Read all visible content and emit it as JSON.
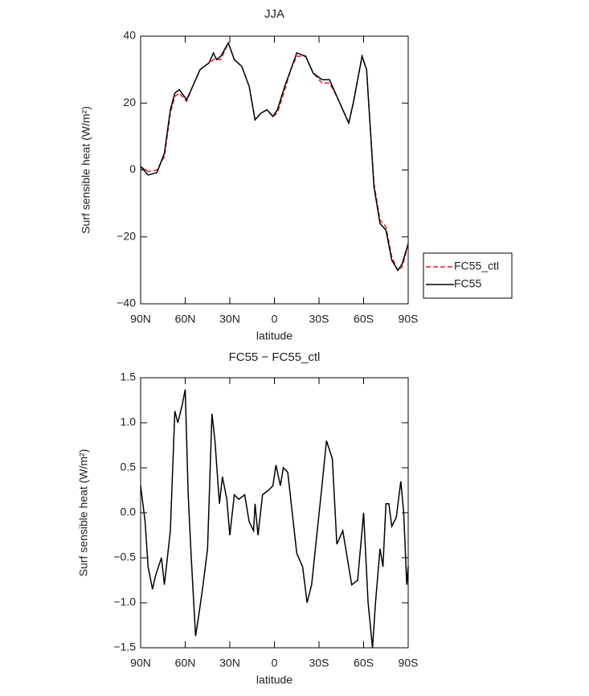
{
  "chart_data": [
    {
      "type": "line",
      "title": "JJA",
      "x_label": "latitude",
      "y_label": "Surf sensible heat (W/m²)",
      "xlim": [
        90,
        -90
      ],
      "xticks": [
        {
          "value": 90,
          "label": "90N"
        },
        {
          "value": 60,
          "label": "60N"
        },
        {
          "value": 30,
          "label": "30N"
        },
        0,
        {
          "value": -30,
          "label": "30S"
        },
        {
          "value": -60,
          "label": "60S"
        },
        {
          "value": -90,
          "label": "90S"
        }
      ],
      "ylim": [
        -40,
        40
      ],
      "yticks": [
        {
          "value": -40,
          "label": "−40"
        },
        {
          "value": -20,
          "label": "−20"
        },
        0,
        20,
        40
      ],
      "legend": "right",
      "x": [
        90,
        85,
        79,
        74,
        70,
        67,
        64,
        59,
        55,
        50,
        44,
        41,
        39,
        36,
        31,
        27,
        22,
        17,
        13,
        9,
        5,
        1,
        -2,
        -7,
        -11,
        -15,
        -21,
        -26,
        -32,
        -37,
        -42,
        -50,
        -53,
        -59,
        -62,
        -67,
        -71,
        -75,
        -79,
        -83,
        -86,
        -90
      ],
      "series": [
        {
          "name": "FC55_ctl",
          "color": "#e02020",
          "style": "dashed",
          "values": [
            1,
            -0.5,
            0,
            4,
            17,
            22,
            23,
            20.5,
            25,
            30,
            32,
            33,
            33,
            33,
            38,
            33,
            31,
            25,
            15,
            17,
            18,
            16,
            17,
            24,
            30,
            34,
            34,
            29,
            26,
            26,
            22,
            14,
            20,
            34,
            30,
            -4,
            -15,
            -17,
            -26,
            -30,
            -29,
            -22
          ]
        },
        {
          "name": "FC55",
          "color": "#000000",
          "style": "solid",
          "values": [
            1,
            -1.5,
            -0.8,
            5,
            18,
            23,
            24,
            21,
            25,
            30,
            32,
            35,
            33,
            34,
            38,
            33,
            31,
            25,
            15,
            17,
            18,
            16,
            18,
            25,
            30,
            35,
            34,
            29,
            27,
            27,
            22,
            14,
            20,
            34,
            30,
            -5,
            -16,
            -18,
            -27,
            -30,
            -28,
            -22
          ]
        }
      ]
    },
    {
      "type": "line",
      "title": "FC55 − FC55_ctl",
      "x_label": "latitude",
      "y_label": "Surf sensible heat (W/m²)",
      "xlim": [
        90,
        -90
      ],
      "xticks": [
        {
          "value": 90,
          "label": "90N"
        },
        {
          "value": 60,
          "label": "60N"
        },
        {
          "value": 30,
          "label": "30N"
        },
        0,
        {
          "value": -30,
          "label": "30S"
        },
        {
          "value": -60,
          "label": "60S"
        },
        {
          "value": -90,
          "label": "90S"
        }
      ],
      "ylim": [
        -1.5,
        1.5
      ],
      "yticks": [
        {
          "value": -1.5,
          "label": "−1.5"
        },
        {
          "value": -1,
          "label": "−1.0"
        },
        {
          "value": -0.5,
          "label": "−0.5"
        },
        {
          "value": 0,
          "label": "0.0"
        },
        0.5,
        {
          "value": 1,
          "label": "1.0"
        },
        1.5
      ],
      "x": [
        90,
        87,
        85,
        82,
        80,
        78,
        76,
        74,
        70,
        67,
        65,
        62,
        60,
        58,
        56,
        53,
        51,
        48,
        45,
        42,
        40,
        37,
        35,
        32,
        30,
        27,
        24,
        20,
        17,
        14,
        13,
        11,
        8,
        4,
        1,
        -1,
        -4,
        -6,
        -9,
        -12,
        -15,
        -19,
        -22,
        -25,
        -32,
        -35,
        -39,
        -42,
        -46,
        -52,
        -56,
        -60,
        -63,
        -66,
        -68,
        -71,
        -73,
        -75,
        -77,
        -79,
        -82,
        -85,
        -87,
        -89,
        -90
      ],
      "series": [
        {
          "name": "FC55",
          "color": "#000000",
          "style": "solid",
          "values": [
            0.3,
            -0.1,
            -0.6,
            -0.85,
            -0.7,
            -0.6,
            -0.5,
            -0.8,
            -0.2,
            1.13,
            1.0,
            1.2,
            1.37,
            0.2,
            -0.48,
            -1.37,
            -1.15,
            -0.8,
            -0.4,
            1.1,
            0.8,
            0.1,
            0.4,
            0.15,
            -0.25,
            0.2,
            0.15,
            0.2,
            -0.1,
            -0.2,
            0.1,
            -0.25,
            0.2,
            0.25,
            0.3,
            0.53,
            0.3,
            0.5,
            0.45,
            0,
            -0.45,
            -0.6,
            -1.0,
            -0.8,
            0.3,
            0.8,
            0.6,
            -0.35,
            -0.2,
            -0.8,
            -0.75,
            0,
            -1.0,
            -1.5,
            -1.0,
            -0.4,
            -0.6,
            0.1,
            0.1,
            -0.15,
            -0.05,
            0.35,
            0,
            -0.8,
            -0.6
          ]
        }
      ]
    }
  ]
}
